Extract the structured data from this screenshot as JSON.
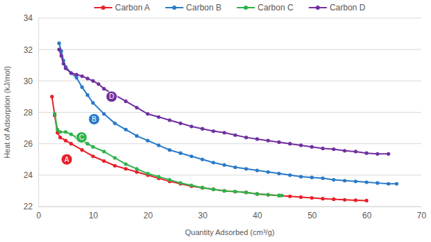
{
  "chart_data": {
    "type": "line",
    "x_label": "Quantity Adsorbed (cm³/g)",
    "y_label": "Heat of Adsorption (kJ/mol)",
    "xlim": [
      0,
      70
    ],
    "xticks": [
      0,
      10,
      20,
      30,
      40,
      50,
      60,
      70
    ],
    "ylim": [
      22,
      34
    ],
    "yticks": [
      22,
      24,
      26,
      28,
      30,
      32,
      34
    ],
    "grid": true,
    "legend": "top",
    "marker": "circle",
    "series": [
      {
        "name": "Carbon A",
        "color": "#e8202a",
        "x": [
          2.5,
          3.0,
          3.5,
          4,
          5,
          6,
          8,
          10,
          12,
          14,
          16,
          18,
          20,
          22,
          24,
          26,
          28,
          30,
          32,
          34,
          36,
          38,
          40,
          42,
          44,
          46,
          48,
          50,
          52,
          54,
          56,
          58,
          60
        ],
        "values": [
          29.0,
          27.8,
          26.7,
          26.4,
          26.2,
          26.0,
          25.6,
          25.2,
          24.9,
          24.6,
          24.4,
          24.2,
          24.0,
          23.8,
          23.6,
          23.45,
          23.3,
          23.2,
          23.1,
          23.0,
          22.95,
          22.9,
          22.8,
          22.75,
          22.7,
          22.65,
          22.6,
          22.55,
          22.5,
          22.47,
          22.43,
          22.4,
          22.38
        ]
      },
      {
        "name": "Carbon B",
        "color": "#2a7ac8",
        "x": [
          3.8,
          4.2,
          4.6,
          5,
          6,
          7,
          8,
          9,
          10,
          12,
          14,
          16,
          18,
          20,
          22,
          24,
          26,
          28,
          30,
          32,
          34,
          36,
          38,
          40,
          42,
          44,
          46,
          48,
          50,
          52,
          54,
          56,
          58,
          60,
          62,
          64,
          65.5
        ],
        "values": [
          32.4,
          31.9,
          31.3,
          30.9,
          30.5,
          30.2,
          29.6,
          29.1,
          28.6,
          27.9,
          27.3,
          26.9,
          26.5,
          26.2,
          25.9,
          25.6,
          25.4,
          25.2,
          25.0,
          24.8,
          24.65,
          24.5,
          24.4,
          24.3,
          24.2,
          24.1,
          24.0,
          23.9,
          23.85,
          23.8,
          23.7,
          23.65,
          23.6,
          23.55,
          23.5,
          23.45,
          23.45
        ]
      },
      {
        "name": "Carbon C",
        "color": "#2db34a",
        "x": [
          3,
          3.5,
          4,
          5,
          6,
          7,
          8,
          9,
          10,
          12,
          14,
          16,
          18,
          20,
          22,
          24,
          26,
          28,
          30,
          32,
          34,
          36,
          38,
          40,
          42,
          44,
          44.5
        ],
        "values": [
          27.9,
          26.9,
          26.75,
          26.75,
          26.6,
          26.4,
          26.2,
          26.0,
          25.8,
          25.5,
          25.1,
          24.7,
          24.4,
          24.1,
          23.9,
          23.7,
          23.5,
          23.35,
          23.2,
          23.1,
          23.0,
          22.95,
          22.9,
          22.8,
          22.75,
          22.7,
          22.7
        ]
      },
      {
        "name": "Carbon D",
        "color": "#7030a0",
        "x": [
          3.8,
          4.2,
          4.6,
          5,
          6,
          7,
          8,
          9,
          10,
          11,
          12,
          14,
          16,
          18,
          20,
          22,
          24,
          26,
          28,
          30,
          32,
          34,
          36,
          38,
          40,
          42,
          44,
          46,
          48,
          50,
          52,
          54,
          56,
          58,
          60,
          62,
          64
        ],
        "values": [
          32.0,
          31.6,
          31.1,
          30.8,
          30.5,
          30.4,
          30.3,
          30.15,
          30.0,
          29.8,
          29.5,
          29.1,
          28.7,
          28.3,
          27.9,
          27.7,
          27.5,
          27.3,
          27.1,
          26.95,
          26.8,
          26.7,
          26.55,
          26.4,
          26.3,
          26.2,
          26.1,
          26.0,
          25.9,
          25.8,
          25.7,
          25.65,
          25.55,
          25.5,
          25.4,
          25.35,
          25.35
        ]
      }
    ],
    "annotations": [
      {
        "text": "A",
        "x": 5.2,
        "y": 25.0,
        "color": "#e8202a"
      },
      {
        "text": "B",
        "x": 10.2,
        "y": 27.56,
        "color": "#2a7ac8"
      },
      {
        "text": "C",
        "x": 7.9,
        "y": 26.4,
        "color": "#2db34a"
      },
      {
        "text": "D",
        "x": 13.4,
        "y": 29.0,
        "color": "#7030a0"
      }
    ]
  }
}
